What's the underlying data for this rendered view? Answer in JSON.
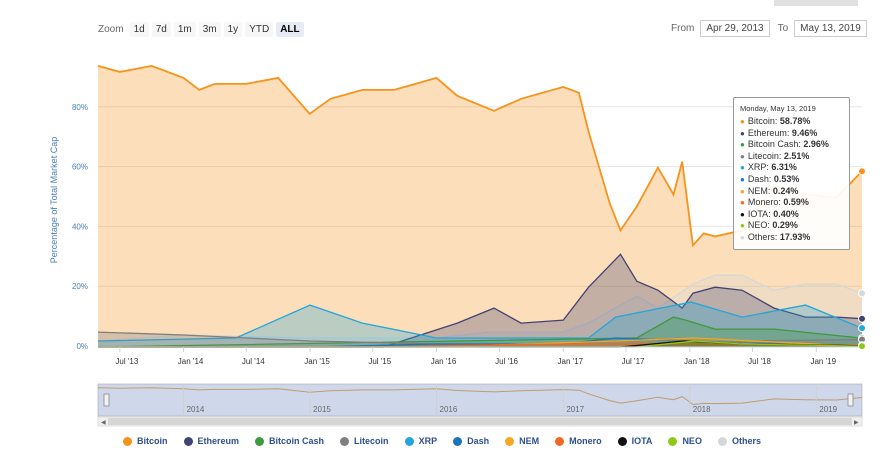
{
  "zoom": {
    "label": "Zoom",
    "buttons": [
      "1d",
      "7d",
      "1m",
      "3m",
      "1y",
      "YTD",
      "ALL"
    ],
    "active": "ALL"
  },
  "range": {
    "from_label": "From",
    "from_value": "Apr 29, 2013",
    "to_label": "To",
    "to_value": "May 13, 2019"
  },
  "tooltip": {
    "date": "Monday, May 13, 2019",
    "rows": [
      {
        "name": "Bitcoin",
        "value": "58.78%"
      },
      {
        "name": "Ethereum",
        "value": "9.46%"
      },
      {
        "name": "Bitcoin Cash",
        "value": "2.96%"
      },
      {
        "name": "Litecoin",
        "value": "2.51%"
      },
      {
        "name": "XRP",
        "value": "6.31%"
      },
      {
        "name": "Dash",
        "value": "0.53%"
      },
      {
        "name": "NEM",
        "value": "0.24%"
      },
      {
        "name": "Monero",
        "value": "0.59%"
      },
      {
        "name": "IOTA",
        "value": "0.40%"
      },
      {
        "name": "NEO",
        "value": "0.29%"
      },
      {
        "name": "Others",
        "value": "17.93%"
      }
    ]
  },
  "navigator_years": [
    "2014",
    "2015",
    "2016",
    "2017",
    "2018",
    "2019"
  ],
  "colors": {
    "Bitcoin": "#f7931a",
    "Ethereum": "#434372",
    "Bitcoin Cash": "#3d9a3d",
    "Litecoin": "#7f7f7f",
    "XRP": "#24a6d8",
    "Dash": "#1c75bc",
    "NEM": "#f5a623",
    "Monero": "#f26822",
    "IOTA": "#111111",
    "NEO": "#8ec919",
    "Others": "#d3d8d8"
  },
  "chart_data": {
    "type": "area",
    "ylabel": "Percentage of Total Market Cap",
    "y_ticks": [
      "0%",
      "20%",
      "40%",
      "60%",
      "80%"
    ],
    "ylim": [
      0,
      100
    ],
    "x_ticks": [
      "Jul '13",
      "Jan '14",
      "Jul '14",
      "Jan '15",
      "Jul '15",
      "Jan '16",
      "Jul '16",
      "Jan '17",
      "Jul '17",
      "Jan '18",
      "Jul '18",
      "Jan '19"
    ],
    "x_range": [
      "2013-04-29",
      "2019-05-13"
    ],
    "grid": true,
    "legend_position": "bottom",
    "series": [
      {
        "name": "Bitcoin",
        "x": [
          "2013-04-29",
          "2013-07-01",
          "2013-10-01",
          "2014-01-01",
          "2014-02-15",
          "2014-04-01",
          "2014-07-01",
          "2014-10-01",
          "2014-12-31",
          "2015-03-01",
          "2015-06-01",
          "2015-09-01",
          "2016-01-01",
          "2016-03-01",
          "2016-06-15",
          "2016-09-01",
          "2017-01-01",
          "2017-02-15",
          "2017-03-15",
          "2017-05-15",
          "2017-06-15",
          "2017-08-01",
          "2017-10-01",
          "2017-11-15",
          "2017-12-10",
          "2018-01-10",
          "2018-02-10",
          "2018-03-15",
          "2018-06-01",
          "2018-09-01",
          "2018-12-01",
          "2019-03-01",
          "2019-05-13"
        ],
        "values": [
          94,
          92,
          94,
          90,
          86,
          88,
          88,
          90,
          78,
          83,
          86,
          86,
          90,
          84,
          79,
          83,
          87,
          85,
          72,
          48,
          39,
          47,
          60,
          51,
          62,
          34,
          38,
          37,
          39,
          54,
          51,
          50,
          58.78
        ]
      },
      {
        "name": "Ethereum",
        "x": [
          "2013-04-29",
          "2015-08-01",
          "2016-03-01",
          "2016-06-15",
          "2016-09-01",
          "2017-01-01",
          "2017-03-15",
          "2017-06-15",
          "2017-08-01",
          "2017-10-01",
          "2017-12-10",
          "2018-01-10",
          "2018-03-15",
          "2018-06-01",
          "2018-09-01",
          "2018-12-01",
          "2019-03-01",
          "2019-05-13"
        ],
        "values": [
          0,
          0,
          8,
          13,
          8,
          9,
          20,
          31,
          22,
          19,
          13,
          18,
          20,
          19,
          13,
          10,
          10,
          9.46
        ]
      },
      {
        "name": "Bitcoin Cash",
        "x": [
          "2013-04-29",
          "2017-08-01",
          "2017-11-15",
          "2017-12-20",
          "2018-03-15",
          "2018-09-01",
          "2019-05-13"
        ],
        "values": [
          0,
          3,
          10,
          9,
          6,
          6,
          2.96
        ]
      },
      {
        "name": "Litecoin",
        "x": [
          "2013-04-29",
          "2014-01-01",
          "2015-01-01",
          "2016-01-01",
          "2017-01-01",
          "2017-12-10",
          "2018-06-01",
          "2019-05-13"
        ],
        "values": [
          5,
          4,
          2,
          1,
          1,
          3,
          2,
          2.51
        ]
      },
      {
        "name": "XRP",
        "x": [
          "2013-04-29",
          "2014-06-01",
          "2015-01-01",
          "2015-06-01",
          "2016-01-01",
          "2017-03-15",
          "2017-06-01",
          "2018-01-05",
          "2018-06-01",
          "2018-12-01",
          "2019-05-13"
        ],
        "values": [
          2,
          3,
          14,
          8,
          3,
          3,
          10,
          15,
          10,
          14,
          6.31
        ]
      },
      {
        "name": "Dash",
        "x": [
          "2013-04-29",
          "2015-01-01",
          "2016-01-01",
          "2017-01-01",
          "2017-06-01",
          "2018-01-01",
          "2019-05-13"
        ],
        "values": [
          0,
          0,
          1,
          1,
          3,
          2,
          0.53
        ]
      },
      {
        "name": "NEM",
        "x": [
          "2013-04-29",
          "2016-01-01",
          "2017-06-01",
          "2018-01-10",
          "2019-05-13"
        ],
        "values": [
          0,
          0,
          2,
          3,
          0.24
        ]
      },
      {
        "name": "Monero",
        "x": [
          "2013-04-29",
          "2015-06-01",
          "2017-01-01",
          "2018-01-01",
          "2019-05-13"
        ],
        "values": [
          0,
          0,
          1,
          1,
          0.59
        ]
      },
      {
        "name": "IOTA",
        "x": [
          "2013-04-29",
          "2017-06-15",
          "2017-12-15",
          "2018-06-01",
          "2019-05-13"
        ],
        "values": [
          0,
          0,
          2,
          1,
          0.4
        ]
      },
      {
        "name": "NEO",
        "x": [
          "2013-04-29",
          "2017-08-01",
          "2018-01-15",
          "2018-06-01",
          "2019-05-13"
        ],
        "values": [
          0,
          0,
          2,
          1,
          0.29
        ]
      },
      {
        "name": "Others",
        "x": [
          "2013-04-29",
          "2014-01-01",
          "2015-01-01",
          "2016-01-01",
          "2016-06-01",
          "2017-01-01",
          "2017-03-15",
          "2017-06-15",
          "2017-08-01",
          "2017-10-01",
          "2018-01-10",
          "2018-03-15",
          "2018-06-01",
          "2018-09-01",
          "2018-12-01",
          "2019-03-01",
          "2019-05-13"
        ],
        "values": [
          2,
          4,
          3,
          3,
          5,
          5,
          8,
          14,
          17,
          13,
          21,
          24,
          24,
          19,
          21,
          21,
          17.93
        ]
      }
    ]
  }
}
